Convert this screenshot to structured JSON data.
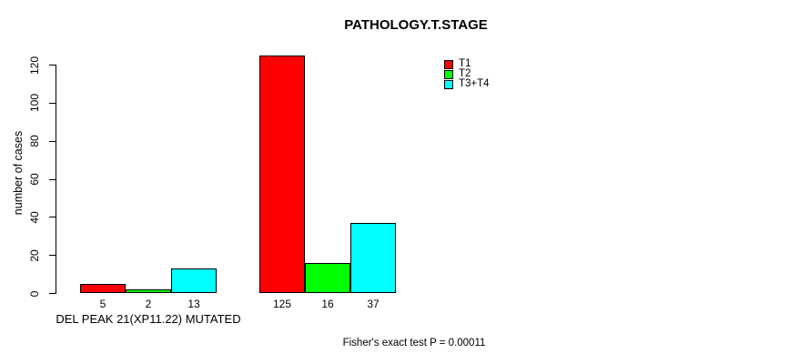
{
  "chart_data": {
    "type": "bar",
    "title": "PATHOLOGY.T.STAGE",
    "ylabel": "number of cases",
    "xlabel": "",
    "ylim": [
      0,
      120
    ],
    "yticks": [
      0,
      20,
      40,
      60,
      80,
      100,
      120
    ],
    "grid": false,
    "legend_position": "top-right",
    "series": [
      {
        "name": "T1",
        "color": "#FF0000"
      },
      {
        "name": "T2",
        "color": "#00FF00"
      },
      {
        "name": "T3+T4",
        "color": "#00FFFF"
      }
    ],
    "groups": [
      {
        "label": "DEL PEAK 21(XP11.22) MUTATED",
        "values": [
          5,
          2,
          13
        ]
      },
      {
        "label": "",
        "values": [
          125,
          16,
          37
        ]
      }
    ],
    "bar_value_labels": [
      "5",
      "2",
      "13",
      "125",
      "16",
      "37"
    ],
    "annotation": "Fisher's exact test P = 0.00011",
    "axis_color": "#000000",
    "text_color": "#000000",
    "background_color": "#FFFFFF"
  }
}
